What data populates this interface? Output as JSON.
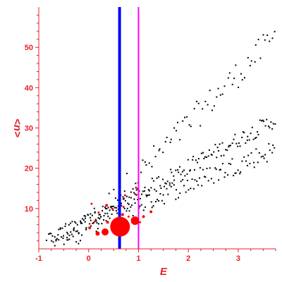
{
  "chart_data": {
    "type": "scatter",
    "title": "",
    "xlabel": "E",
    "ylabel": "<n>",
    "xlim": [
      -1,
      3.75
    ],
    "ylim": [
      0,
      60
    ],
    "xticks": [
      -1,
      0,
      1,
      2,
      3
    ],
    "yticks": [
      10,
      20,
      30,
      40,
      50
    ],
    "grid": false,
    "colors": {
      "axis": "#e8202a",
      "points": "#000000",
      "red_points": "#ff0000",
      "blue_line": "#0000ff",
      "magenta_line": "#ff00ff"
    },
    "vertical_lines": [
      {
        "x": 0.62,
        "color": "#0000ff",
        "style": "thick"
      },
      {
        "x": 1.0,
        "color": "#ff00ff",
        "style": "thin"
      }
    ],
    "red_points": [
      {
        "x": 0.63,
        "y": 5.5,
        "size": 14
      },
      {
        "x": 0.93,
        "y": 7.0,
        "size": 6
      },
      {
        "x": 0.33,
        "y": 4.2,
        "size": 5
      },
      {
        "x": 0.18,
        "y": 3.8,
        "size": 3
      },
      {
        "x": 0.02,
        "y": 5.2,
        "size": 2
      },
      {
        "x": 1.1,
        "y": 8.0,
        "size": 2
      },
      {
        "x": 1.25,
        "y": 9.2,
        "size": 2
      },
      {
        "x": 0.38,
        "y": 6.6,
        "size": 2
      },
      {
        "x": 0.36,
        "y": 10.8,
        "size": 2
      },
      {
        "x": 0.68,
        "y": 8.5,
        "size": 2
      },
      {
        "x": 0.8,
        "y": 8.0,
        "size": 1.5
      },
      {
        "x": 0.96,
        "y": 13.4,
        "size": 1.5
      },
      {
        "x": 0.7,
        "y": 10.4,
        "size": 1.5
      },
      {
        "x": 0.48,
        "y": 9.9,
        "size": 1.5
      },
      {
        "x": 0.12,
        "y": 6.8,
        "size": 1.5
      },
      {
        "x": 0.2,
        "y": 9.0,
        "size": 1.5
      },
      {
        "x": 0.73,
        "y": 13.3,
        "size": 1.5
      },
      {
        "x": 0.95,
        "y": 15.2,
        "size": 1.5
      },
      {
        "x": 1.03,
        "y": 6.6,
        "size": 1.5
      },
      {
        "x": 0.06,
        "y": 11.2,
        "size": 1.5
      }
    ],
    "bands": [
      {
        "name": "upper",
        "x_start": -0.5,
        "x_end": 3.75,
        "slope": 12.5,
        "intercept": 6.0,
        "spread": 3.5,
        "n": 95
      },
      {
        "name": "middle",
        "x_start": -0.8,
        "x_end": 3.75,
        "slope": 6.7,
        "intercept": 7.0,
        "spread": 2.0,
        "n": 170
      },
      {
        "name": "lower",
        "x_start": -0.85,
        "x_end": 3.75,
        "slope": 5.0,
        "intercept": 6.0,
        "spread": 2.5,
        "n": 150
      }
    ]
  }
}
